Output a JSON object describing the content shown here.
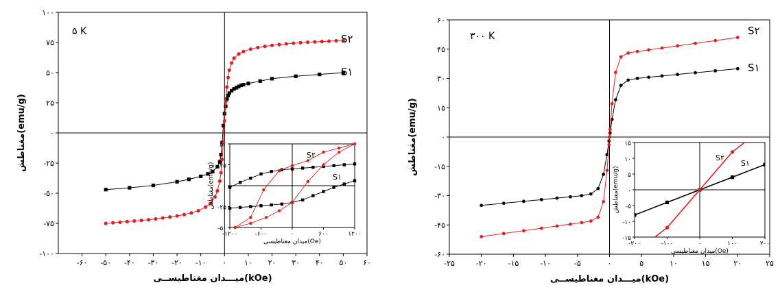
{
  "chart_data": [
    {
      "type": "line",
      "panel_label": "۵ K",
      "xlabel": "میـــدان مغناطیســی(kOe)",
      "ylabel": "مغناطش(emu/g)",
      "xlim": [
        -70,
        60
      ],
      "ylim": [
        -100,
        100
      ],
      "xticks": [
        -60,
        -50,
        -40,
        -30,
        -20,
        -10,
        0,
        10,
        20,
        30,
        40,
        50,
        60
      ],
      "xtick_labels": [
        "-۶۰",
        "-۵۰",
        "-۴۰",
        "-۳۰",
        "-۲۰",
        "-۱۰",
        "۰",
        "۱۰",
        "۲۰",
        "۳۰",
        "۴۰",
        "۵۰",
        "۶۰"
      ],
      "yticks": [
        -100,
        -75,
        -50,
        -25,
        0,
        25,
        50,
        75,
        100
      ],
      "ytick_labels": [
        "-۱۰۰",
        "-۷۵",
        "-۵۰",
        "-۲۵",
        "۰",
        "۲۵",
        "۵۰",
        "۷۵",
        "۱۰۰"
      ],
      "series": [
        {
          "name": "S۱",
          "color": "#000000",
          "marker": "square",
          "x": [
            -50,
            -40,
            -30,
            -20,
            -15,
            -10,
            -7,
            -5,
            -3,
            -2,
            -1.5,
            -1,
            -0.5,
            0,
            0.5,
            1,
            1.5,
            2,
            3,
            4,
            5,
            6,
            7,
            8,
            10,
            15,
            20,
            30,
            40,
            50
          ],
          "y": [
            -47,
            -45.5,
            -43.5,
            -40.5,
            -38.5,
            -36,
            -34,
            -32,
            -28,
            -24,
            -18,
            -8,
            6,
            16,
            22,
            28,
            31,
            33,
            35,
            36.5,
            37.5,
            38.5,
            39.5,
            40,
            41,
            43,
            45,
            47,
            48.5,
            50
          ]
        },
        {
          "name": "S۲",
          "color": "#e02020",
          "marker": "circle",
          "x": [
            -50,
            -47,
            -44,
            -41,
            -38,
            -35,
            -32,
            -29,
            -26,
            -23,
            -20,
            -17,
            -14,
            -11,
            -8,
            -6,
            -4,
            -3,
            -2,
            -1.5,
            -1,
            -0.5,
            0,
            0.5,
            1,
            1.5,
            2,
            3,
            4,
            6,
            8,
            11,
            14,
            17,
            20,
            23,
            26,
            29,
            32,
            35,
            38,
            41,
            44,
            47,
            50
          ],
          "y": [
            -75,
            -74.5,
            -74,
            -73.5,
            -73,
            -72.5,
            -72,
            -71.3,
            -70.5,
            -69.7,
            -68.8,
            -67.7,
            -66.3,
            -64.5,
            -61.5,
            -58.5,
            -53,
            -48,
            -40,
            -33,
            -22,
            -8,
            10,
            26,
            38,
            46,
            52,
            58,
            62,
            65.5,
            67.5,
            69.5,
            70.8,
            71.8,
            72.6,
            73.3,
            73.9,
            74.4,
            74.8,
            75.2,
            75.5,
            75.8,
            76.1,
            76.4,
            76.7
          ]
        }
      ],
      "series_labels": [
        "S۱",
        "S۲"
      ],
      "inset": {
        "xlabel": "میدان مغناطیسی(Oe)",
        "ylabel": "مغناطش(emu/g)",
        "xlim": [
          -1200,
          1200
        ],
        "ylim": [
          -50,
          50
        ],
        "xticks": [
          -1200,
          -600,
          0,
          600,
          1200
        ],
        "xtick_labels": [
          "-۱۲۰۰",
          "-۶۰۰",
          "۰",
          "۶۰۰",
          "۱۲۰۰"
        ],
        "yticks": [
          -50,
          -25,
          0,
          25,
          50
        ],
        "ytick_labels": [
          "-۵۰",
          "-۲۵",
          "۰",
          "۲۵",
          "۵۰"
        ],
        "series": [
          {
            "name": "S۱",
            "color": "#000000",
            "marker": "square",
            "upper_x": [
              -1200,
              -1000,
              -800,
              -600,
              -400,
              -200,
              0,
              200,
              400,
              600,
              800,
              1000,
              1200
            ],
            "upper_y": [
              -2,
              4,
              9,
              14,
              17,
              19,
              20,
              21,
              22,
              23,
              24,
              25,
              26
            ],
            "lower_x": [
              -1200,
              -1000,
              -800,
              -600,
              -400,
              -200,
              0,
              200,
              400,
              600,
              800,
              1000,
              1200
            ],
            "lower_y": [
              -27,
              -26,
              -25,
              -24,
              -23,
              -22,
              -20,
              -17,
              -12,
              -7,
              -2,
              2,
              6
            ]
          },
          {
            "name": "S۲",
            "color": "#e02020",
            "marker": "circle",
            "upper_x": [
              -1100,
              -800,
              -550,
              -250,
              0,
              300,
              600,
              900,
              1200
            ],
            "upper_y": [
              -50,
              -38,
              -5,
              18,
              24,
              30,
              40,
              45,
              50
            ],
            "lower_x": [
              -1100,
              -800,
              -500,
              -250,
              0,
              300,
              600,
              900,
              1200
            ],
            "lower_y": [
              -50,
              -45,
              -38,
              -30,
              -20,
              5,
              25,
              40,
              50
            ]
          }
        ]
      }
    },
    {
      "type": "line",
      "panel_label": "۳۰۰ K",
      "xlabel": "میـــدان مغناطیســی(kOe)",
      "ylabel": "مغناطش(emu/g)",
      "xlim": [
        -25,
        25
      ],
      "ylim": [
        -60,
        60
      ],
      "xticks": [
        -25,
        -20,
        -15,
        -10,
        -5,
        0,
        5,
        10,
        15,
        20,
        25
      ],
      "xtick_labels": [
        "-۲۵",
        "-۲۰",
        "-۱۵",
        "-۱۰",
        "-۵",
        "۰",
        "۵",
        "۱۰",
        "۱۵",
        "۲۰",
        "۲۵"
      ],
      "yticks": [
        -60,
        -45,
        -30,
        -15,
        0,
        15,
        30,
        45,
        60
      ],
      "ytick_labels": [
        "-۶۰",
        "-۴۵",
        "-۳۰",
        "-۱۵",
        "۰",
        "۱۵",
        "۳۰",
        "۴۵",
        "۶۰"
      ],
      "series": [
        {
          "name": "S۱",
          "color": "#000000",
          "marker": "circle",
          "ms": 35,
          "hc": 0.15,
          "k": 1.2,
          "a": 0.0
        },
        {
          "name": "S۲",
          "color": "#e02020",
          "marker": "circle",
          "ms": 51,
          "hc": 0.15,
          "k": 0.9,
          "a": 0.0
        }
      ],
      "series_labels": [
        "S۱",
        "S۲"
      ],
      "inset": {
        "xlabel": "میدان مغناطیسی(Oe)",
        "ylabel": "مغناطش(emu/g)",
        "xlim": [
          -200,
          200
        ],
        "ylim": [
          -15,
          15
        ],
        "xticks": [
          -200,
          -100,
          0,
          100,
          200
        ],
        "xtick_labels": [
          "-۲۰۰",
          "-۱۰۰",
          "۰",
          "۱۰۰",
          "۲۰۰"
        ],
        "yticks": [
          -15,
          -10,
          -5,
          0,
          5,
          10,
          15
        ],
        "ytick_labels": [
          "-۱۵",
          "-۱۰",
          "-۵",
          "۰",
          "۵",
          "۱۰",
          "۱۵"
        ],
        "series": [
          {
            "name": "S۱",
            "color": "#000000",
            "marker": "square",
            "x": [
              -200,
              -100,
              0,
              100,
              200
            ],
            "y": [
              -8,
              -4,
              0,
              4,
              8
            ]
          },
          {
            "name": "S۲",
            "color": "#e02020",
            "marker": "circle",
            "x": [
              -200,
              -150,
              -100,
              0,
              100,
              150,
              200
            ],
            "y": [
              -20,
              -16,
              -12,
              0,
              12,
              16,
              20
            ]
          }
        ]
      }
    }
  ]
}
